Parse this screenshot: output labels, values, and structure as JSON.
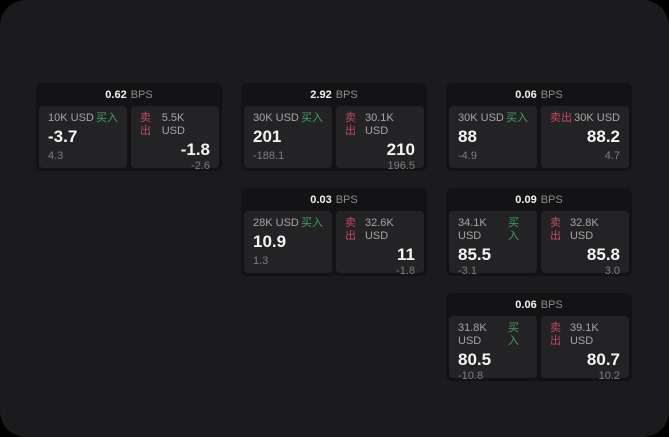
{
  "labels": {
    "bps": "BPS",
    "buy": "买入",
    "sell": "卖出"
  },
  "colors": {
    "background": "#1b1b1d",
    "card": "#131315",
    "panel": "#232326",
    "buy_green": "#3fa35b",
    "sell_red": "#c14a5f"
  },
  "cards": [
    {
      "bps": "0.62",
      "buy": {
        "amount": "10K USD",
        "price": "-3.7",
        "delta": "4.3"
      },
      "sell": {
        "amount": "5.5K USD",
        "price": "-1.8",
        "delta": "-2.6"
      }
    },
    {
      "bps": "2.92",
      "buy": {
        "amount": "30K USD",
        "price": "201",
        "delta": "-188.1"
      },
      "sell": {
        "amount": "30.1K USD",
        "price": "210",
        "delta": "196.5"
      }
    },
    {
      "bps": "0.06",
      "buy": {
        "amount": "30K USD",
        "price": "88",
        "delta": "-4.9"
      },
      "sell": {
        "amount": "30K USD",
        "price": "88.2",
        "delta": "4.7"
      }
    },
    {
      "bps": "0.03",
      "buy": {
        "amount": "28K USD",
        "price": "10.9",
        "delta": "1.3"
      },
      "sell": {
        "amount": "32.6K USD",
        "price": "11",
        "delta": "-1.8"
      }
    },
    {
      "bps": "0.09",
      "buy": {
        "amount": "34.1K USD",
        "price": "85.5",
        "delta": "-3.1"
      },
      "sell": {
        "amount": "32.8K USD",
        "price": "85.8",
        "delta": "3.0"
      }
    },
    {
      "bps": "0.06",
      "buy": {
        "amount": "31.8K USD",
        "price": "80.5",
        "delta": "-10.8"
      },
      "sell": {
        "amount": "39.1K USD",
        "price": "80.7",
        "delta": "10.2"
      }
    }
  ]
}
